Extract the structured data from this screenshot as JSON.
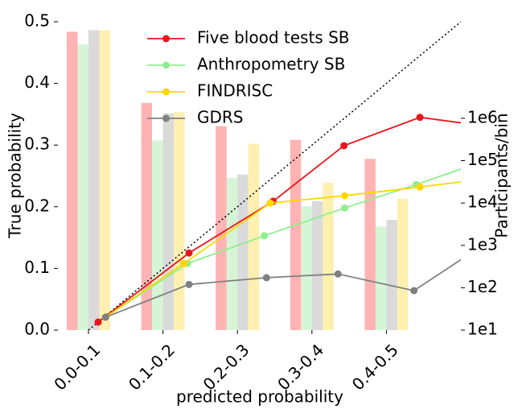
{
  "chart_data": {
    "type": "combo",
    "xlabel": "predicted probability",
    "ylabel": "True probability",
    "y2label": "Participants/bin",
    "xlim": [
      -0.041,
      0.5
    ],
    "xticks": [
      {
        "value": 0,
        "label": "0.0-0.1"
      },
      {
        "value": 0.1,
        "label": "0.1-0.2"
      },
      {
        "value": 0.2,
        "label": "0.2-0.3"
      },
      {
        "value": 0.3,
        "label": "0.3-0.4"
      },
      {
        "value": 0.4,
        "label": "0.4-0.5"
      }
    ],
    "ylim": [
      0,
      0.5
    ],
    "yticks": [
      {
        "value": 0,
        "label": "0.0"
      },
      0.1,
      0.2,
      0.3,
      0.4,
      0.5
    ],
    "y2scale": "log",
    "y2lim": [
      10,
      190000000
    ],
    "y2ticks": [
      {
        "value": 10,
        "label": "1e1"
      },
      {
        "value": 100,
        "label": "1e2"
      },
      {
        "value": 1000,
        "label": "1e3"
      },
      {
        "value": 10000,
        "label": "1e4"
      },
      {
        "value": 100000,
        "label": "1e5"
      },
      {
        "value": 1000000,
        "label": "1e6"
      }
    ],
    "legend": "upper center",
    "bar_series": [
      {
        "color": "#ffb3b3",
        "axis": "y2",
        "values": [
          110000000,
          2300000,
          650000,
          310000,
          110000
        ]
      },
      {
        "color": "#d6f5d6",
        "axis": "y2",
        "values": [
          56000000,
          300000,
          39000,
          8500,
          2800
        ]
      },
      {
        "color": "#dadada",
        "axis": "y2",
        "values": [
          120000000,
          1300000,
          47000,
          11000,
          4000
        ]
      },
      {
        "color": "#fff0b0",
        "axis": "y2",
        "values": [
          120000000,
          1400000,
          250000,
          30000,
          12600
        ]
      }
    ],
    "series": [
      {
        "name": "Five blood tests SB",
        "color": "#e8161b",
        "x": [
          0.013,
          0.135,
          0.248,
          0.343,
          0.445,
          0.55
        ],
        "values": [
          0.013,
          0.125,
          0.209,
          0.299,
          0.345,
          0.328
        ]
      },
      {
        "name": "Anthropometry SB",
        "color": "#90ee90",
        "x": [
          0.023,
          0.133,
          0.236,
          0.344,
          0.44,
          0.55
        ],
        "values": [
          0.021,
          0.108,
          0.153,
          0.198,
          0.236,
          0.282
        ]
      },
      {
        "name": "FINDRISC",
        "color": "#ffd700",
        "x": [
          0.023,
          0.128,
          0.244,
          0.344,
          0.445,
          0.55
        ],
        "values": [
          0.021,
          0.108,
          0.206,
          0.218,
          0.232,
          0.248
        ]
      },
      {
        "name": "GDRS",
        "color": "#808080",
        "x": [
          0.023,
          0.135,
          0.239,
          0.335,
          0.437,
          0.55
        ],
        "values": [
          0.021,
          0.074,
          0.085,
          0.091,
          0.064,
          0.154
        ]
      }
    ]
  }
}
